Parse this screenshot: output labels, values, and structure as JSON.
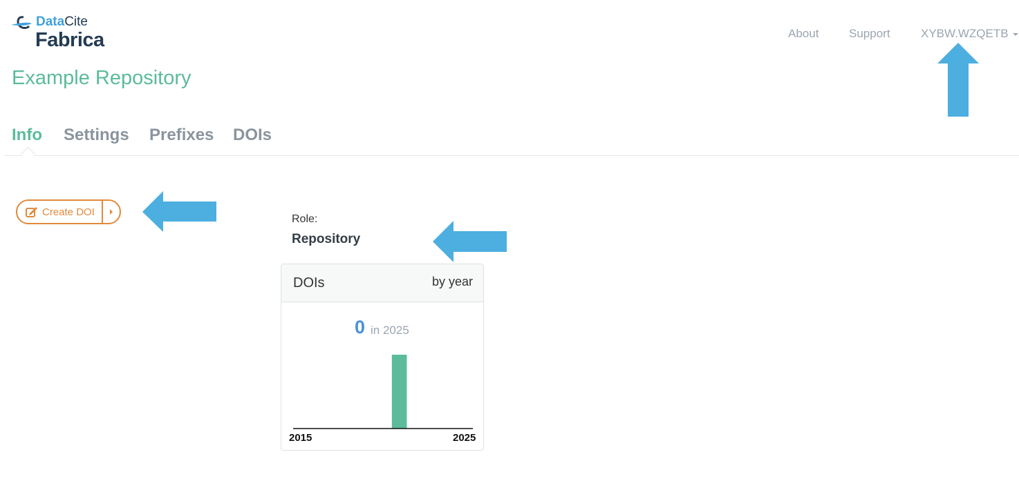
{
  "brand": {
    "logo_text": "DataCite Fabrica",
    "data": "Data",
    "cite": "Cite",
    "product": "Fabrica"
  },
  "nav": {
    "about": "About",
    "support": "Support",
    "user": "XYBW.WZQETB"
  },
  "page_title": "Example Repository",
  "tabs": [
    {
      "label": "Info",
      "active": true
    },
    {
      "label": "Settings"
    },
    {
      "label": "Prefixes"
    },
    {
      "label": "DOIs"
    }
  ],
  "actions": {
    "create_doi": "Create DOI"
  },
  "role": {
    "label": "Role:",
    "value": "Repository"
  },
  "doi_panel": {
    "title": "DOIs",
    "period": "by year",
    "count": "0",
    "count_suffix": "in 2025"
  },
  "chart_data": {
    "type": "bar",
    "x": [
      2015,
      2016,
      2017,
      2018,
      2019,
      2020,
      2021,
      2022,
      2023,
      2024,
      2025
    ],
    "values": [
      0,
      0,
      0,
      0,
      0,
      0,
      1,
      0,
      0,
      0,
      0
    ],
    "tick_labels": [
      "2015",
      "2025"
    ],
    "color": "#5bbb9b",
    "grid": false
  },
  "colors": {
    "accent": "#5bbb9b",
    "button": "#e08a3c",
    "count": "#4a90d9",
    "annotation_arrow": "#4daee0"
  }
}
